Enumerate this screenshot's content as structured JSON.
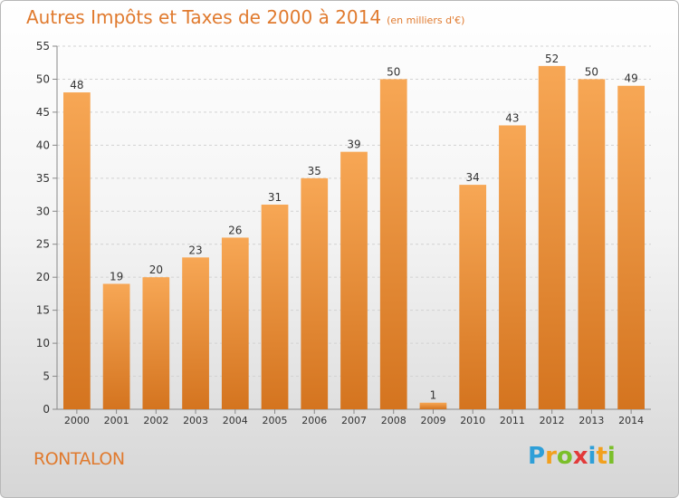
{
  "title": "Autres Impôts et Taxes de 2000 à 2014",
  "subtitle": "(en milliers d'€)",
  "place_name": "RONTALON",
  "logo": {
    "letters": [
      "P",
      "r",
      "o",
      "x",
      "i",
      "t",
      "i"
    ],
    "colors": [
      "#2e9fd8",
      "#f2a01e",
      "#7bbf2a",
      "#e23a3a",
      "#2e9fd8",
      "#f2a01e",
      "#7bbf2a"
    ]
  },
  "colors": {
    "bar_top": "#f7a755",
    "bar_bottom": "#d4741f",
    "text": "#e07a2e"
  },
  "chart_data": {
    "type": "bar",
    "categories": [
      "2000",
      "2001",
      "2002",
      "2003",
      "2004",
      "2005",
      "2006",
      "2007",
      "2008",
      "2009",
      "2010",
      "2011",
      "2012",
      "2013",
      "2014"
    ],
    "values": [
      48,
      19,
      20,
      23,
      26,
      31,
      35,
      39,
      50,
      1,
      34,
      43,
      52,
      50,
      49
    ],
    "ylim": [
      0,
      55
    ],
    "yticks": [
      0,
      5,
      10,
      15,
      20,
      25,
      30,
      35,
      40,
      45,
      50,
      55
    ],
    "grid": true,
    "data_labels": true
  }
}
